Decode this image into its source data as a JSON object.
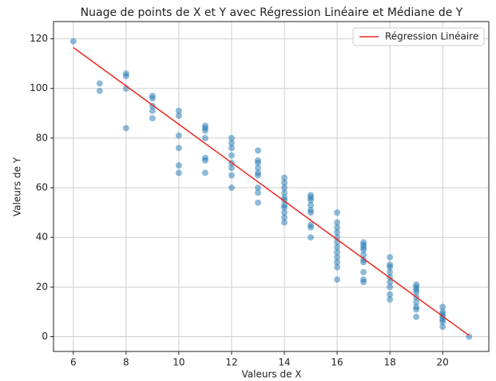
{
  "chart_data": {
    "type": "scatter",
    "title": "Nuage de points de X et Y avec Régression Linéaire et Médiane de Y",
    "x_label": "Valeurs de X",
    "y_label": "Valeurs de Y",
    "x": [
      6,
      7,
      7,
      8,
      8,
      8,
      8,
      9,
      9,
      9,
      9,
      9,
      10,
      10,
      10,
      10,
      10,
      10,
      11,
      11,
      11,
      11,
      11,
      11,
      11,
      12,
      12,
      12,
      12,
      12,
      12,
      12,
      12,
      13,
      13,
      13,
      13,
      13,
      13,
      13,
      13,
      13,
      14,
      14,
      14,
      14,
      14,
      14,
      14,
      14,
      14,
      14,
      14,
      15,
      15,
      15,
      15,
      15,
      15,
      15,
      15,
      15,
      16,
      16,
      16,
      16,
      16,
      16,
      16,
      16,
      16,
      16,
      16,
      16,
      17,
      17,
      17,
      17,
      17,
      17,
      17,
      17,
      17,
      17,
      18,
      18,
      18,
      18,
      18,
      18,
      18,
      18,
      18,
      19,
      19,
      19,
      19,
      19,
      19,
      19,
      19,
      19,
      20,
      20,
      20,
      20,
      20,
      20,
      20,
      21
    ],
    "values": [
      119,
      102,
      99,
      106,
      105,
      100,
      84,
      97,
      96,
      93,
      91,
      88,
      91,
      89,
      81,
      76,
      69,
      66,
      85,
      84,
      83,
      80,
      72,
      71,
      66,
      80,
      78,
      76,
      73,
      70,
      68,
      65,
      60,
      75,
      71,
      70,
      68,
      66,
      65,
      60,
      58,
      54,
      64,
      62,
      60,
      58,
      56,
      55,
      53,
      52,
      50,
      48,
      46,
      57,
      56,
      55,
      53,
      51,
      50,
      45,
      44,
      40,
      50,
      46,
      44,
      42,
      40,
      38,
      36,
      34,
      32,
      30,
      28,
      23,
      38,
      37,
      36,
      35,
      33,
      31,
      30,
      26,
      23,
      22,
      32,
      29,
      28,
      26,
      24,
      22,
      20,
      17,
      15,
      21,
      20,
      19,
      18,
      16,
      14,
      12,
      11,
      8,
      12,
      10,
      9,
      8,
      7,
      6,
      4,
      0
    ],
    "color": "#1f77b4",
    "series": [
      {
        "name": "Régression Linéaire",
        "color": "#e8281f",
        "type": "line",
        "x": [
          6,
          21
        ],
        "values": [
          116.5,
          0.5
        ]
      }
    ],
    "xlim": [
      5.25,
      21.75
    ],
    "ylim": [
      -5.95,
      126.95
    ],
    "xticks": [
      6,
      8,
      10,
      12,
      14,
      16,
      18,
      20
    ],
    "yticks": [
      0,
      20,
      40,
      60,
      80,
      100,
      120
    ],
    "grid": true,
    "legend": "upper right"
  }
}
